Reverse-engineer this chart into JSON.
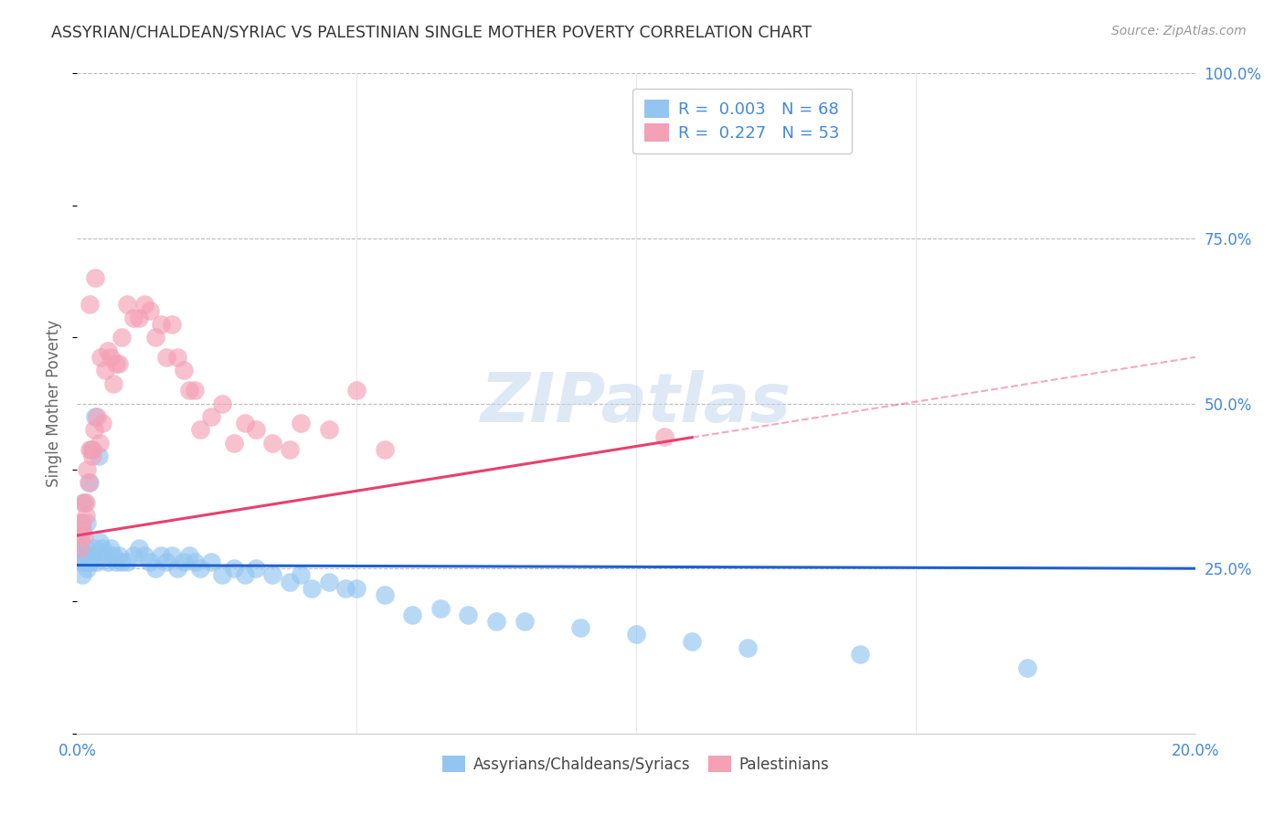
{
  "title": "ASSYRIAN/CHALDEAN/SYRIAC VS PALESTINIAN SINGLE MOTHER POVERTY CORRELATION CHART",
  "source": "Source: ZipAtlas.com",
  "ylabel": "Single Mother Poverty",
  "xlim": [
    0.0,
    20.0
  ],
  "ylim": [
    0.0,
    100.0
  ],
  "right_yticks": [
    100.0,
    75.0,
    50.0,
    25.0
  ],
  "legend_r1": "0.003",
  "legend_n1": "68",
  "legend_r2": "0.227",
  "legend_n2": "53",
  "color_blue": "#92C5F0",
  "color_pink": "#F4A0B5",
  "color_blue_line": "#2060D0",
  "color_pink_line": "#E84070",
  "color_axis_labels": "#4488DD",
  "color_title": "#333333",
  "watermark": "ZIPatlas",
  "background_color": "#ffffff",
  "grid_color": "#bbbbbb",
  "blue_line_y0": 25.5,
  "blue_line_y1": 25.0,
  "pink_line_y0": 30.0,
  "pink_line_y1": 57.0,
  "pink_solid_x_end": 11.0,
  "blue_dots_x": [
    0.05,
    0.08,
    0.1,
    0.12,
    0.14,
    0.16,
    0.18,
    0.2,
    0.22,
    0.25,
    0.28,
    0.3,
    0.35,
    0.4,
    0.45,
    0.5,
    0.55,
    0.6,
    0.65,
    0.7,
    0.75,
    0.8,
    0.9,
    1.0,
    1.1,
    1.2,
    1.3,
    1.4,
    1.5,
    1.6,
    1.7,
    1.8,
    1.9,
    2.0,
    2.1,
    2.2,
    2.4,
    2.6,
    2.8,
    3.0,
    3.2,
    3.5,
    3.8,
    4.0,
    4.2,
    4.5,
    4.8,
    5.0,
    5.5,
    6.0,
    6.5,
    7.0,
    7.5,
    8.0,
    9.0,
    10.0,
    11.0,
    12.0,
    14.0,
    17.0,
    0.06,
    0.09,
    0.13,
    0.17,
    0.23,
    0.27,
    0.32,
    0.38
  ],
  "blue_dots_y": [
    28,
    26,
    24,
    27,
    26,
    28,
    25,
    26,
    27,
    26,
    27,
    28,
    26,
    29,
    28,
    27,
    26,
    28,
    27,
    26,
    27,
    26,
    26,
    27,
    28,
    27,
    26,
    25,
    27,
    26,
    27,
    25,
    26,
    27,
    26,
    25,
    26,
    24,
    25,
    24,
    25,
    24,
    23,
    24,
    22,
    23,
    22,
    22,
    21,
    18,
    19,
    18,
    17,
    17,
    16,
    15,
    14,
    13,
    12,
    10,
    29,
    31,
    35,
    32,
    38,
    43,
    48,
    42
  ],
  "pink_dots_x": [
    0.05,
    0.08,
    0.1,
    0.12,
    0.15,
    0.18,
    0.2,
    0.22,
    0.25,
    0.28,
    0.3,
    0.35,
    0.4,
    0.45,
    0.5,
    0.55,
    0.6,
    0.65,
    0.7,
    0.75,
    0.8,
    0.9,
    1.0,
    1.1,
    1.2,
    1.3,
    1.4,
    1.5,
    1.6,
    1.7,
    1.8,
    1.9,
    2.0,
    2.1,
    2.2,
    2.4,
    2.6,
    2.8,
    3.0,
    3.2,
    3.5,
    3.8,
    4.0,
    4.5,
    5.0,
    5.5,
    0.07,
    0.11,
    0.16,
    0.23,
    0.32,
    10.5,
    0.42
  ],
  "pink_dots_y": [
    28,
    30,
    32,
    30,
    35,
    40,
    38,
    43,
    43,
    42,
    46,
    48,
    44,
    47,
    55,
    58,
    57,
    53,
    56,
    56,
    60,
    65,
    63,
    63,
    65,
    64,
    60,
    62,
    57,
    62,
    57,
    55,
    52,
    52,
    46,
    48,
    50,
    44,
    47,
    46,
    44,
    43,
    47,
    46,
    52,
    43,
    32,
    35,
    33,
    65,
    69,
    45,
    57
  ]
}
